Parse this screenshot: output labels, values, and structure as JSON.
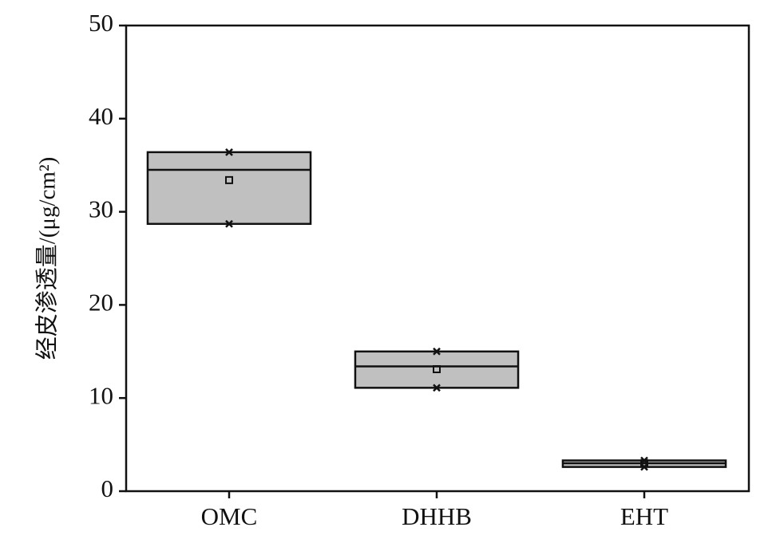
{
  "chart_data": {
    "type": "box",
    "y_label": "经皮渗透量/(μg/cm²)",
    "categories": [
      "OMC",
      "DHHB",
      "EHT"
    ],
    "boxes": [
      {
        "q1": 28.7,
        "median": 34.5,
        "q3": 36.4,
        "mean": 33.4,
        "min": 28.7,
        "max": 36.4
      },
      {
        "q1": 11.1,
        "median": 13.4,
        "q3": 15.0,
        "mean": 13.1,
        "min": 11.1,
        "max": 15.0
      },
      {
        "q1": 2.6,
        "median": 3.0,
        "q3": 3.3,
        "mean": 3.0,
        "min": 2.6,
        "max": 3.3
      }
    ],
    "color": "#c0c0c0",
    "ylim": [
      0,
      50
    ],
    "yticks": [
      0,
      10,
      20,
      30,
      40,
      50
    ]
  }
}
